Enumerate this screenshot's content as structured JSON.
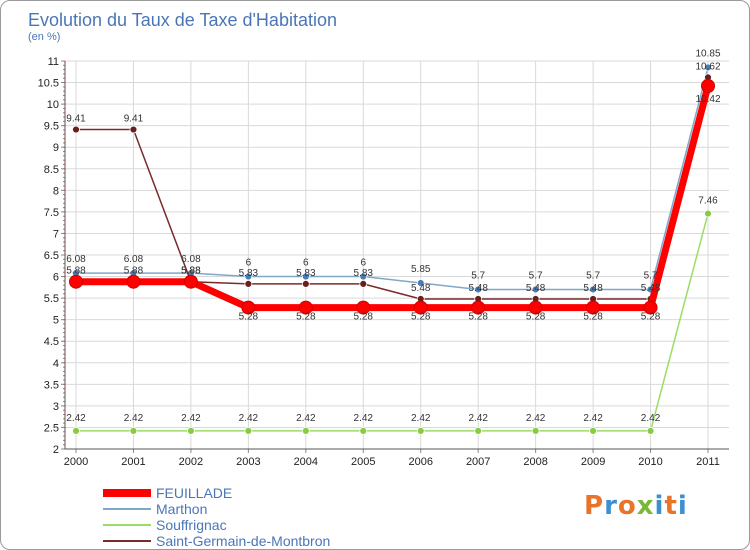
{
  "title": "Evolution du Taux de Taxe d'Habitation",
  "subtitle": "(en %)",
  "logo": {
    "text": "Proxiti",
    "colors": [
      "#e8742a",
      "#3d8fd1",
      "#e8742a",
      "#7ab83a",
      "#3d8fd1",
      "#e8742a",
      "#3d8fd1"
    ]
  },
  "chart_data": {
    "type": "line",
    "title": "Evolution du Taux de Taxe d'Habitation",
    "subtitle": "(en %)",
    "xlabel": "",
    "ylabel": "",
    "x": [
      "2000",
      "2001",
      "2002",
      "2003",
      "2004",
      "2005",
      "2006",
      "2007",
      "2008",
      "2009",
      "2010",
      "2011"
    ],
    "ylim": [
      2,
      11
    ],
    "yticks": [
      "2",
      "2.5",
      "3",
      "3.5",
      "4",
      "4.5",
      "5",
      "5.5",
      "6",
      "6.5",
      "7",
      "7.5",
      "8",
      "8.5",
      "9",
      "9.5",
      "10",
      "10.5",
      "11"
    ],
    "grid": true,
    "legend_position": "bottom-left",
    "series": [
      {
        "name": "FEUILLADE",
        "color": "#ff0000",
        "width": 7,
        "values": [
          5.88,
          5.88,
          5.88,
          5.28,
          5.28,
          5.28,
          5.28,
          5.28,
          5.28,
          5.28,
          5.28,
          10.42
        ],
        "labels": [
          "5.88",
          "5.88",
          "5.88",
          "5.28",
          "5.28",
          "5.28",
          "5.28",
          "5.28",
          "5.28",
          "5.28",
          "5.28",
          "10.42"
        ]
      },
      {
        "name": "Marthon",
        "color": "#7fa7c9",
        "width": 1.5,
        "values": [
          6.08,
          6.08,
          6.08,
          6.0,
          6.0,
          6.0,
          5.85,
          5.7,
          5.7,
          5.7,
          5.7,
          10.85
        ],
        "labels": [
          "6.08",
          "6.08",
          "6.08",
          "6",
          "6",
          "6",
          "5.85",
          "5.7",
          "5.7",
          "5.7",
          "5.7",
          "10.85"
        ]
      },
      {
        "name": "Souffrignac",
        "color": "#99dd66",
        "width": 1.5,
        "values": [
          2.42,
          2.42,
          2.42,
          2.42,
          2.42,
          2.42,
          2.42,
          2.42,
          2.42,
          2.42,
          2.42,
          7.46
        ],
        "labels": [
          "2.42",
          "2.42",
          "2.42",
          "2.42",
          "2.42",
          "2.42",
          "2.42",
          "2.42",
          "2.42",
          "2.42",
          "2.42",
          "7.46"
        ]
      },
      {
        "name": "Saint-Germain-de-Montbron",
        "color": "#7a2a2a",
        "width": 1.5,
        "values": [
          9.41,
          9.41,
          5.88,
          5.83,
          5.83,
          5.83,
          5.48,
          5.48,
          5.48,
          5.48,
          5.48,
          10.62
        ],
        "labels": [
          "9.41",
          "9.41",
          "5.88",
          "5.83",
          "5.83",
          "5.83",
          "5.48",
          "5.48",
          "5.48",
          "5.48",
          "5.48",
          "10.62"
        ]
      }
    ]
  }
}
